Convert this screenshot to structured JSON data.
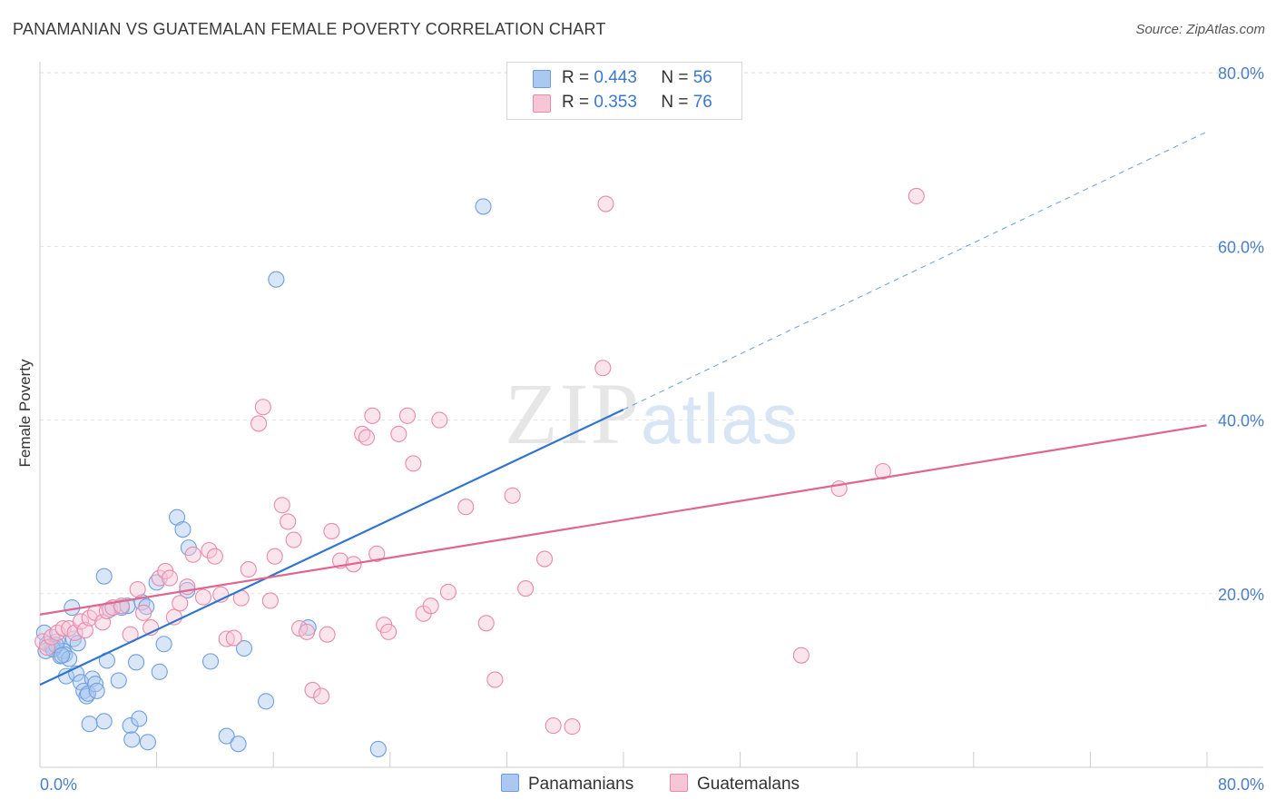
{
  "title": "PANAMANIAN VS GUATEMALAN FEMALE POVERTY CORRELATION CHART",
  "source": "Source: ZipAtlas.com",
  "watermark": {
    "zip": "ZIP",
    "atlas": "atlas"
  },
  "legend_top": [
    {
      "r_label": "R =",
      "r": "0.443",
      "n_label": "N =",
      "n": "56",
      "color": "#aac8f0",
      "border": "#6b9be0"
    },
    {
      "r_label": "R =",
      "r": "0.353",
      "n_label": "N =",
      "n": "76",
      "color": "#f7c6d6",
      "border": "#e98aaa"
    }
  ],
  "colors": {
    "blue": "#6f9fdd",
    "pink": "#e98aaa",
    "blue_line": "#2f74d0",
    "pink_line": "#e0668f",
    "grid": "#e2e2e2"
  },
  "chart_data": {
    "type": "scatter",
    "title": "PANAMANIAN VS GUATEMALAN FEMALE POVERTY CORRELATION CHART",
    "xlabel": "",
    "ylabel": "Female Poverty",
    "xlim": [
      0,
      80
    ],
    "ylim": [
      0,
      80
    ],
    "x_tick_labels": [
      "0.0%",
      "80.0%"
    ],
    "y_tick_labels": [
      "20.0%",
      "40.0%",
      "60.0%",
      "80.0%"
    ],
    "y_ticks": [
      20,
      40,
      60,
      80
    ],
    "grid": true,
    "legend": "top-center",
    "series": [
      {
        "name": "Panamanians",
        "color": "#6f9fdd",
        "points": [
          [
            0.3,
            15.5
          ],
          [
            0.5,
            14.2
          ],
          [
            0.8,
            14
          ],
          [
            1,
            13.8
          ],
          [
            1.2,
            14.5
          ],
          [
            1.4,
            12.8
          ],
          [
            1.6,
            13.4
          ],
          [
            1.7,
            13
          ],
          [
            2,
            12.5
          ],
          [
            2.3,
            14.8
          ],
          [
            1.8,
            10.5
          ],
          [
            2.5,
            10.8
          ],
          [
            2.8,
            9.8
          ],
          [
            3,
            8.8
          ],
          [
            3.2,
            8.2
          ],
          [
            3.3,
            8.5
          ],
          [
            3.6,
            10.2
          ],
          [
            3.8,
            9.6
          ],
          [
            3.9,
            8.8
          ],
          [
            2.2,
            18.4
          ],
          [
            4.4,
            22
          ],
          [
            4.6,
            12.3
          ],
          [
            4.8,
            18.2
          ],
          [
            5.4,
            10
          ],
          [
            5.6,
            18.4
          ],
          [
            6,
            18.6
          ],
          [
            6.6,
            12.1
          ],
          [
            7,
            19
          ],
          [
            7.3,
            18.5
          ],
          [
            8,
            21.3
          ],
          [
            8.2,
            11
          ],
          [
            8.5,
            14.2
          ],
          [
            9.4,
            28.8
          ],
          [
            9.8,
            27.4
          ],
          [
            10.2,
            25.3
          ],
          [
            10.1,
            20.4
          ],
          [
            11.7,
            12.2
          ],
          [
            14,
            13.7
          ],
          [
            16.2,
            56.2
          ],
          [
            18.4,
            16.1
          ],
          [
            30.4,
            64.6
          ],
          [
            3.4,
            5
          ],
          [
            4.4,
            5.3
          ],
          [
            6.2,
            4.8
          ],
          [
            6.8,
            5.6
          ],
          [
            6.3,
            3.2
          ],
          [
            7.4,
            2.9
          ],
          [
            12.8,
            3.6
          ],
          [
            13.6,
            2.7
          ],
          [
            15.5,
            7.6
          ],
          [
            23.2,
            2.1
          ],
          [
            0.4,
            13.4
          ],
          [
            0.9,
            13.6
          ],
          [
            1.1,
            14.1
          ],
          [
            2.6,
            14.3
          ],
          [
            1.5,
            12.9
          ]
        ]
      },
      {
        "name": "Guatemalans",
        "color": "#e98aaa",
        "points": [
          [
            0.2,
            14.5
          ],
          [
            0.5,
            13.8
          ],
          [
            0.8,
            15
          ],
          [
            1.2,
            15.5
          ],
          [
            1.6,
            16
          ],
          [
            2,
            16
          ],
          [
            2.4,
            15.5
          ],
          [
            2.8,
            16.8
          ],
          [
            3.1,
            15.8
          ],
          [
            3.4,
            17.2
          ],
          [
            3.8,
            17.8
          ],
          [
            4.3,
            16.7
          ],
          [
            4.6,
            18
          ],
          [
            5,
            18.4
          ],
          [
            5.6,
            18.6
          ],
          [
            6.2,
            15.3
          ],
          [
            6.7,
            20.5
          ],
          [
            7.1,
            17.8
          ],
          [
            7.6,
            16.1
          ],
          [
            8.2,
            21.8
          ],
          [
            8.6,
            22.6
          ],
          [
            8.9,
            21.8
          ],
          [
            9.2,
            17.3
          ],
          [
            9.6,
            18.9
          ],
          [
            10.1,
            20.8
          ],
          [
            10.5,
            24.5
          ],
          [
            11.2,
            19.6
          ],
          [
            11.6,
            25
          ],
          [
            12,
            24.3
          ],
          [
            12.4,
            19.9
          ],
          [
            12.8,
            14.8
          ],
          [
            13.3,
            14.9
          ],
          [
            13.8,
            19.5
          ],
          [
            14.3,
            22.8
          ],
          [
            15,
            39.6
          ],
          [
            15.3,
            41.5
          ],
          [
            15.8,
            19.2
          ],
          [
            16.1,
            24.3
          ],
          [
            16.6,
            30.2
          ],
          [
            17,
            28.3
          ],
          [
            17.4,
            26.2
          ],
          [
            17.8,
            16
          ],
          [
            18.3,
            15.6
          ],
          [
            18.7,
            8.9
          ],
          [
            19.3,
            8.2
          ],
          [
            19.7,
            15.3
          ],
          [
            20,
            27.2
          ],
          [
            20.6,
            23.8
          ],
          [
            21.5,
            23.4
          ],
          [
            22.1,
            38.4
          ],
          [
            22.4,
            38
          ],
          [
            22.8,
            40.5
          ],
          [
            23.1,
            24.6
          ],
          [
            23.6,
            16.4
          ],
          [
            23.9,
            15.6
          ],
          [
            24.6,
            38.4
          ],
          [
            25.2,
            40.5
          ],
          [
            25.6,
            35
          ],
          [
            26.3,
            17.7
          ],
          [
            26.8,
            18.6
          ],
          [
            27.4,
            40
          ],
          [
            28,
            20.2
          ],
          [
            29.2,
            30
          ],
          [
            30.6,
            16.6
          ],
          [
            31.2,
            10.1
          ],
          [
            32.4,
            31.3
          ],
          [
            33.3,
            20.6
          ],
          [
            34.6,
            24
          ],
          [
            35.2,
            4.8
          ],
          [
            36.5,
            4.7
          ],
          [
            38.6,
            46
          ],
          [
            38.8,
            64.9
          ],
          [
            52.2,
            12.9
          ],
          [
            54.8,
            32.1
          ],
          [
            57.8,
            34.1
          ],
          [
            60.1,
            65.8
          ]
        ]
      }
    ],
    "trend_lines": [
      {
        "series": "Panamanians",
        "x0": 0,
        "y0": 9.5,
        "x1": 40,
        "y1": 41.2,
        "dash_to_x": 80,
        "dash_to_y": 73.2
      },
      {
        "series": "Guatemalans",
        "x0": 0,
        "y0": 17.6,
        "x1": 80,
        "y1": 39.4
      }
    ]
  },
  "bottom_legend": [
    {
      "label": "Panamanians",
      "color": "#aac8f0",
      "border": "#6b9be0"
    },
    {
      "label": "Guatemalans",
      "color": "#f7c6d6",
      "border": "#e98aaa"
    }
  ]
}
